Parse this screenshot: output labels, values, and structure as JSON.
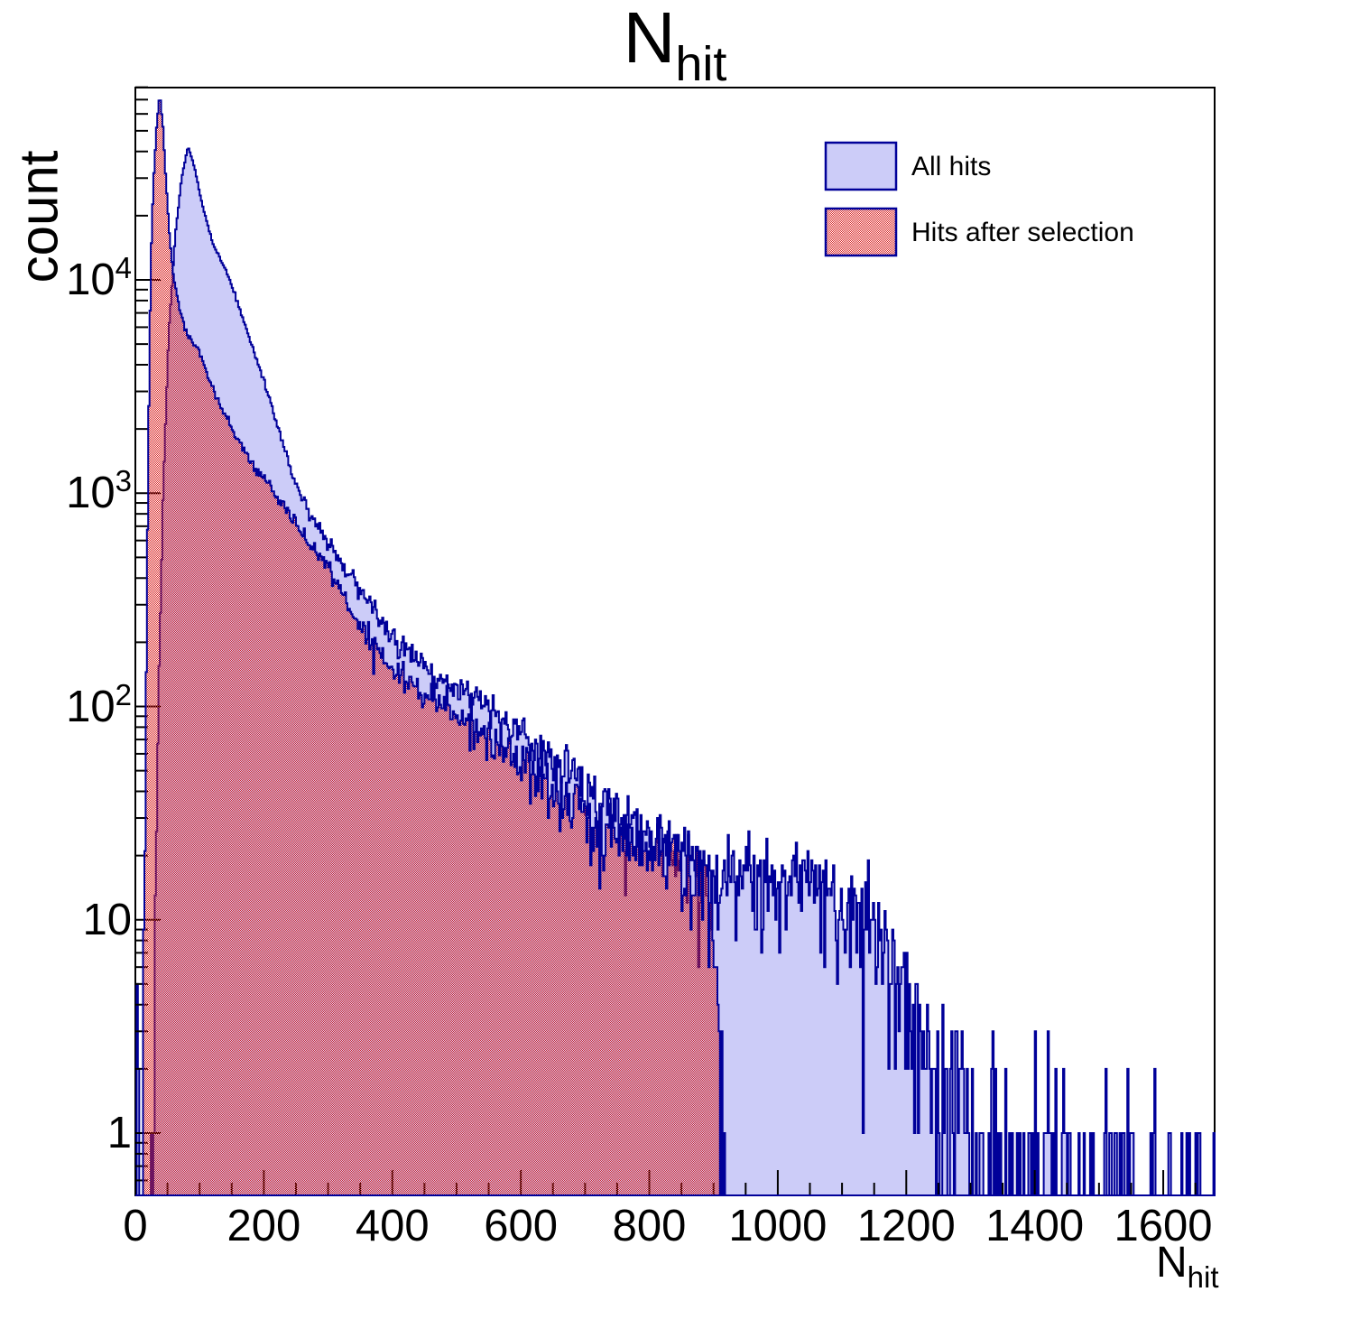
{
  "title": {
    "main": "N",
    "sub": "hit"
  },
  "axes": {
    "y": {
      "label": "count",
      "scale": "log",
      "ticks": [
        {
          "label": "1",
          "value": 1
        },
        {
          "label": "10",
          "value": 10
        },
        {
          "label": "10",
          "exp": "2",
          "value": 100
        },
        {
          "label": "10",
          "exp": "3",
          "value": 1000
        },
        {
          "label": "10",
          "exp": "4",
          "value": 10000
        }
      ]
    },
    "x": {
      "title_main": "N",
      "title_sub": "hit",
      "ticks": [
        {
          "label": "0",
          "value": 0
        },
        {
          "label": "200",
          "value": 200
        },
        {
          "label": "400",
          "value": 400
        },
        {
          "label": "600",
          "value": 600
        },
        {
          "label": "800",
          "value": 800
        },
        {
          "label": "1000",
          "value": 1000
        },
        {
          "label": "1200",
          "value": 1200
        },
        {
          "label": "1400",
          "value": 1400
        },
        {
          "label": "1600",
          "value": 1600
        }
      ],
      "minor_step": 50
    }
  },
  "legend": {
    "items": [
      {
        "label": "All hits",
        "swatch": "solid-lavender"
      },
      {
        "label": "Hits after selection",
        "swatch": "checker-red"
      }
    ]
  },
  "colors": {
    "hist_line": "#000099",
    "all_hits_fill": "#ccccf8",
    "selection_red": "#d92525",
    "axis": "#000000",
    "background": "#ffffff"
  },
  "chart_data": {
    "type": "histogram",
    "title": "N_hit",
    "xlabel": "N_hit",
    "ylabel": "count",
    "x_range": [
      0,
      1680
    ],
    "y_range": [
      0.51,
      79500
    ],
    "y_scale": "log",
    "bin_width": 2,
    "grid": false,
    "legend_position": "top-right",
    "series": [
      {
        "name": "All hits",
        "style": "solid_fill",
        "seed": 13,
        "envelope": [
          [
            24,
            0.6
          ],
          [
            30,
            8
          ],
          [
            36,
            120
          ],
          [
            44,
            1200
          ],
          [
            52,
            5600
          ],
          [
            62,
            16000
          ],
          [
            72,
            30000
          ],
          [
            82,
            42000
          ],
          [
            92,
            34000
          ],
          [
            105,
            22000
          ],
          [
            120,
            15000
          ],
          [
            147,
            10000
          ],
          [
            175,
            5600
          ],
          [
            200,
            3400
          ],
          [
            225,
            1900
          ],
          [
            253,
            1000
          ],
          [
            285,
            700
          ],
          [
            320,
            480
          ],
          [
            360,
            330
          ],
          [
            400,
            215
          ],
          [
            450,
            155
          ],
          [
            500,
            120
          ],
          [
            550,
            100
          ],
          [
            600,
            76
          ],
          [
            650,
            57
          ],
          [
            700,
            42
          ],
          [
            750,
            34
          ],
          [
            800,
            26
          ],
          [
            850,
            21
          ],
          [
            900,
            17
          ],
          [
            950,
            16
          ],
          [
            1000,
            15
          ],
          [
            1050,
            16
          ],
          [
            1100,
            13
          ],
          [
            1140,
            11
          ],
          [
            1160,
            9
          ],
          [
            1185,
            6
          ],
          [
            1205,
            4
          ],
          [
            1225,
            2.5
          ],
          [
            1260,
            1.4
          ],
          [
            1300,
            1.0
          ],
          [
            1360,
            0.7
          ],
          [
            1450,
            0.45
          ],
          [
            1550,
            0.3
          ],
          [
            1680,
            0.3
          ]
        ],
        "spikes": [
          [
            2,
            5
          ],
          [
            5,
            2
          ],
          [
            1335,
            3
          ],
          [
            1420,
            3
          ],
          [
            1510,
            2
          ],
          [
            1586,
            2
          ],
          [
            1640,
            1
          ],
          [
            1678,
            1
          ]
        ]
      },
      {
        "name": "Hits after selection",
        "style": "red_checker",
        "seed": 7,
        "envelope": [
          [
            9,
            0.7
          ],
          [
            11,
            2
          ],
          [
            13,
            7
          ],
          [
            15,
            30
          ],
          [
            17,
            150
          ],
          [
            20,
            1500
          ],
          [
            24,
            12000
          ],
          [
            28,
            28000
          ],
          [
            33,
            52000
          ],
          [
            38,
            74000
          ],
          [
            43,
            52000
          ],
          [
            48,
            28000
          ],
          [
            54,
            15000
          ],
          [
            60,
            10000
          ],
          [
            70,
            7000
          ],
          [
            80,
            5600
          ],
          [
            98,
            4700
          ],
          [
            115,
            3400
          ],
          [
            140,
            2300
          ],
          [
            180,
            1400
          ],
          [
            218,
            1000
          ],
          [
            260,
            640
          ],
          [
            300,
            450
          ],
          [
            350,
            240
          ],
          [
            400,
            150
          ],
          [
            450,
            115
          ],
          [
            480,
            100
          ],
          [
            550,
            70
          ],
          [
            620,
            47
          ],
          [
            700,
            30
          ],
          [
            772,
            23
          ],
          [
            820,
            20
          ],
          [
            870,
            17
          ],
          [
            895,
            15
          ],
          [
            900,
            8
          ],
          [
            905,
            4
          ],
          [
            910,
            1.5
          ],
          [
            915,
            1.2
          ],
          [
            918,
            0.5
          ]
        ],
        "spikes": [
          [
            913,
            3
          ]
        ]
      }
    ]
  }
}
